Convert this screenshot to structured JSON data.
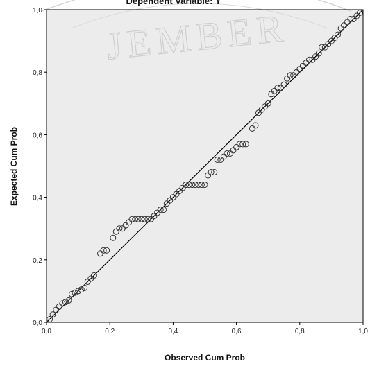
{
  "chart_data": {
    "type": "scatter",
    "title": "Dependent Variable: Y",
    "xlabel": "Observed Cum Prob",
    "ylabel": "Expected Cum Prob",
    "xlim": [
      0,
      1
    ],
    "ylim": [
      0,
      1
    ],
    "x_ticks": [
      "0,0",
      "0,2",
      "0,4",
      "0,6",
      "0,8",
      "1,0"
    ],
    "y_ticks": [
      "0,0",
      "0,2",
      "0,4",
      "0,6",
      "0,8",
      "1,0"
    ],
    "grid": false,
    "reference_line": {
      "from": [
        0,
        0
      ],
      "to": [
        1,
        1
      ]
    },
    "points": [
      [
        0.01,
        0.01
      ],
      [
        0.02,
        0.025
      ],
      [
        0.03,
        0.04
      ],
      [
        0.04,
        0.05
      ],
      [
        0.05,
        0.06
      ],
      [
        0.06,
        0.065
      ],
      [
        0.07,
        0.07
      ],
      [
        0.08,
        0.09
      ],
      [
        0.09,
        0.095
      ],
      [
        0.1,
        0.1
      ],
      [
        0.11,
        0.105
      ],
      [
        0.12,
        0.11
      ],
      [
        0.13,
        0.13
      ],
      [
        0.14,
        0.14
      ],
      [
        0.15,
        0.15
      ],
      [
        0.17,
        0.22
      ],
      [
        0.18,
        0.23
      ],
      [
        0.19,
        0.23
      ],
      [
        0.21,
        0.27
      ],
      [
        0.22,
        0.29
      ],
      [
        0.23,
        0.3
      ],
      [
        0.24,
        0.3
      ],
      [
        0.25,
        0.31
      ],
      [
        0.26,
        0.32
      ],
      [
        0.27,
        0.33
      ],
      [
        0.28,
        0.33
      ],
      [
        0.29,
        0.33
      ],
      [
        0.3,
        0.33
      ],
      [
        0.31,
        0.33
      ],
      [
        0.32,
        0.33
      ],
      [
        0.33,
        0.33
      ],
      [
        0.34,
        0.34
      ],
      [
        0.35,
        0.35
      ],
      [
        0.36,
        0.36
      ],
      [
        0.37,
        0.36
      ],
      [
        0.38,
        0.38
      ],
      [
        0.39,
        0.39
      ],
      [
        0.4,
        0.4
      ],
      [
        0.41,
        0.41
      ],
      [
        0.42,
        0.42
      ],
      [
        0.43,
        0.43
      ],
      [
        0.44,
        0.44
      ],
      [
        0.45,
        0.44
      ],
      [
        0.46,
        0.44
      ],
      [
        0.47,
        0.44
      ],
      [
        0.48,
        0.44
      ],
      [
        0.49,
        0.44
      ],
      [
        0.5,
        0.44
      ],
      [
        0.51,
        0.47
      ],
      [
        0.52,
        0.48
      ],
      [
        0.53,
        0.48
      ],
      [
        0.54,
        0.52
      ],
      [
        0.55,
        0.52
      ],
      [
        0.56,
        0.53
      ],
      [
        0.57,
        0.54
      ],
      [
        0.58,
        0.54
      ],
      [
        0.59,
        0.55
      ],
      [
        0.6,
        0.56
      ],
      [
        0.61,
        0.57
      ],
      [
        0.62,
        0.57
      ],
      [
        0.63,
        0.57
      ],
      [
        0.65,
        0.62
      ],
      [
        0.66,
        0.63
      ],
      [
        0.67,
        0.67
      ],
      [
        0.68,
        0.68
      ],
      [
        0.69,
        0.69
      ],
      [
        0.7,
        0.7
      ],
      [
        0.71,
        0.73
      ],
      [
        0.72,
        0.74
      ],
      [
        0.73,
        0.75
      ],
      [
        0.74,
        0.75
      ],
      [
        0.75,
        0.76
      ],
      [
        0.76,
        0.78
      ],
      [
        0.77,
        0.79
      ],
      [
        0.78,
        0.79
      ],
      [
        0.79,
        0.8
      ],
      [
        0.8,
        0.81
      ],
      [
        0.81,
        0.82
      ],
      [
        0.82,
        0.83
      ],
      [
        0.83,
        0.84
      ],
      [
        0.84,
        0.84
      ],
      [
        0.85,
        0.85
      ],
      [
        0.86,
        0.86
      ],
      [
        0.87,
        0.88
      ],
      [
        0.88,
        0.88
      ],
      [
        0.89,
        0.89
      ],
      [
        0.9,
        0.9
      ],
      [
        0.91,
        0.91
      ],
      [
        0.92,
        0.92
      ],
      [
        0.93,
        0.94
      ],
      [
        0.94,
        0.95
      ],
      [
        0.95,
        0.96
      ],
      [
        0.96,
        0.97
      ],
      [
        0.97,
        0.97
      ],
      [
        0.98,
        0.98
      ],
      [
        0.99,
        0.99
      ]
    ]
  },
  "watermark": {
    "text": "JEMBER"
  },
  "colors": {
    "plot_bg": "#ececec",
    "point_stroke": "#333333",
    "line": "#000000"
  }
}
